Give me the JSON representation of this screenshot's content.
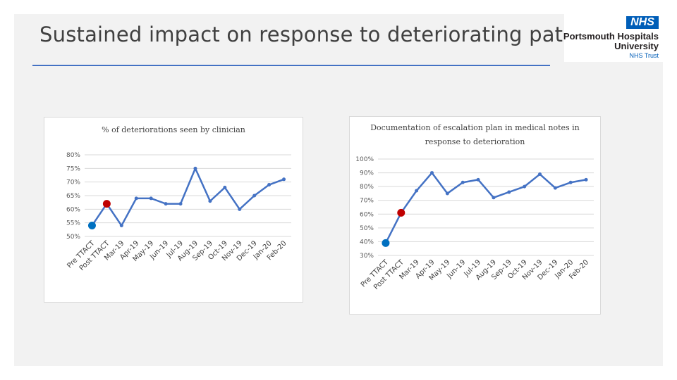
{
  "slide": {
    "title": "Sustained impact on response to deteriorating patients",
    "logo": {
      "badge": "NHS",
      "line1": "Portsmouth Hospitals",
      "line2": "University",
      "line3": "NHS Trust"
    }
  },
  "colors": {
    "line": "#4472c4",
    "pre_marker": "#0070c0",
    "post_marker": "#c00000",
    "grid": "#d9d9d9"
  },
  "chart_data": [
    {
      "type": "line",
      "title": "% of deteriorations seen by clinician",
      "categories": [
        "Pre TTACT",
        "Post TTACT",
        "Mar-19",
        "Apr-19",
        "May-19",
        "Jun-19",
        "Jul-19",
        "Aug-19",
        "Sep-19",
        "Oct-19",
        "Nov-19",
        "Dec-19",
        "Jan-20",
        "Feb-20"
      ],
      "values": [
        54,
        62,
        54,
        64,
        64,
        62,
        62,
        75,
        63,
        68,
        60,
        65,
        69,
        71
      ],
      "ylim": [
        50,
        80
      ],
      "yticks": [
        50,
        55,
        60,
        65,
        70,
        75,
        80
      ],
      "ytick_labels": [
        "50%",
        "55%",
        "60%",
        "65%",
        "70%",
        "75%",
        "80%"
      ],
      "grid": true,
      "highlight": {
        "pre_index": 0,
        "post_index": 1
      }
    },
    {
      "type": "line",
      "title": "Documentation of escalation plan in medical notes in response to deterioration",
      "categories": [
        "Pre TTACT",
        "Post TTACT",
        "Mar-19",
        "Apr-19",
        "May-19",
        "Jun-19",
        "Jul-19",
        "Aug-19",
        "Sep-19",
        "Oct-19",
        "Nov-19",
        "Dec-19",
        "Jan-20",
        "Feb-20"
      ],
      "values": [
        39,
        61,
        77,
        90,
        75,
        83,
        85,
        72,
        76,
        80,
        89,
        79,
        83,
        85
      ],
      "ylim": [
        30,
        100
      ],
      "yticks": [
        30,
        40,
        50,
        60,
        70,
        80,
        90,
        100
      ],
      "ytick_labels": [
        "30%",
        "40%",
        "50%",
        "60%",
        "70%",
        "80%",
        "90%",
        "100%"
      ],
      "grid": true,
      "highlight": {
        "pre_index": 0,
        "post_index": 1
      }
    }
  ]
}
